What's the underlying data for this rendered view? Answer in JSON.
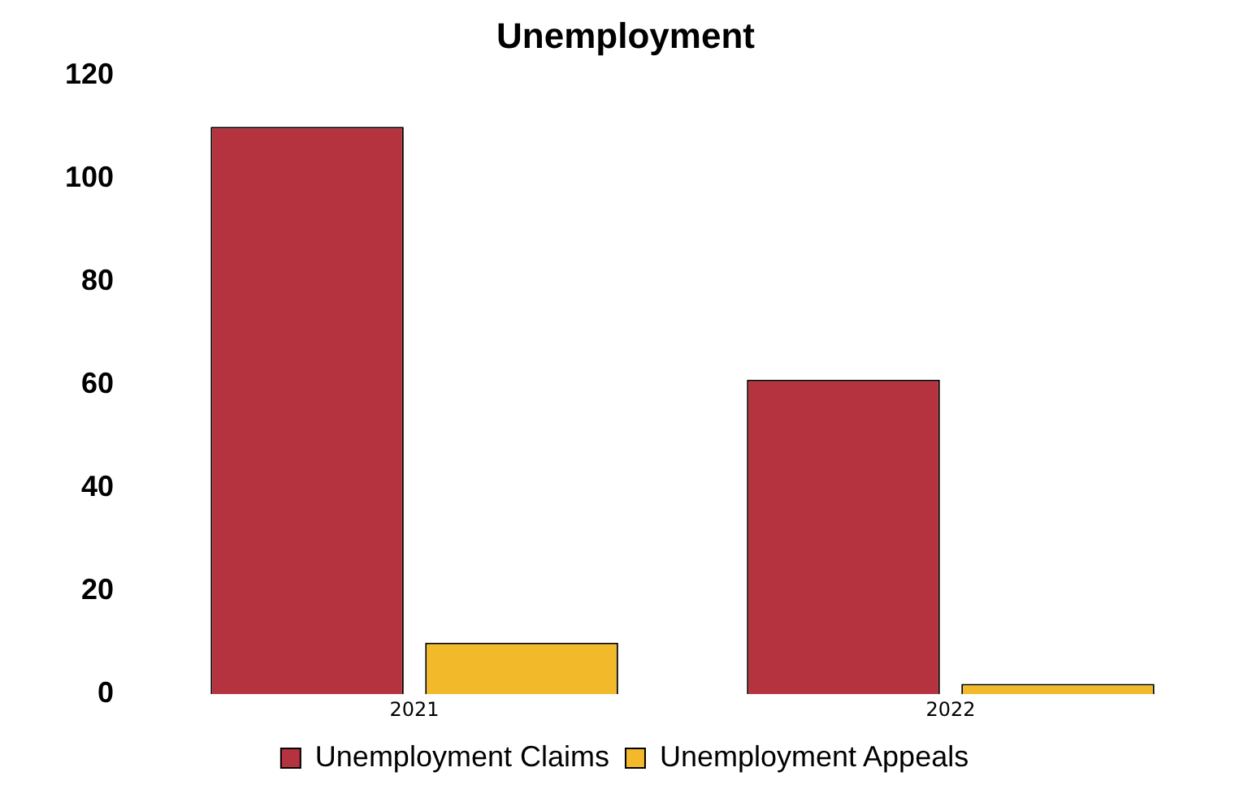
{
  "chart_data": {
    "type": "bar",
    "title": "Unemployment",
    "categories": [
      "2021",
      "2022"
    ],
    "series": [
      {
        "name": "Unemployment Claims",
        "color": "#b5323f",
        "values": [
          110,
          61
        ]
      },
      {
        "name": "Unemployment Appeals",
        "color": "#f2b92b",
        "values": [
          10,
          2
        ]
      }
    ],
    "ylim": [
      0,
      120
    ],
    "yticks": [
      0,
      20,
      40,
      60,
      80,
      100,
      120
    ],
    "grid": false,
    "legend": "bottom"
  }
}
